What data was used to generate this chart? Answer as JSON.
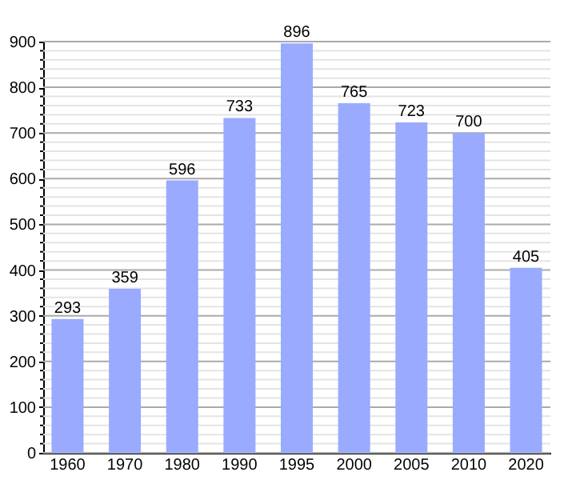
{
  "chart_data": {
    "type": "bar",
    "categories": [
      "1960",
      "1970",
      "1980",
      "1990",
      "1995",
      "2000",
      "2005",
      "2010",
      "2020"
    ],
    "values": [
      293,
      359,
      596,
      733,
      896,
      765,
      723,
      700,
      405
    ],
    "color": "#99aaff",
    "ylim": [
      0,
      900
    ],
    "yticks": [
      0,
      {
        "value": 20,
        "label": null
      },
      {
        "value": 40,
        "label": null
      },
      {
        "value": 60,
        "label": null
      },
      {
        "value": 80,
        "label": null
      },
      100,
      {
        "value": 120,
        "label": null
      },
      {
        "value": 140,
        "label": null
      },
      {
        "value": 160,
        "label": null
      },
      {
        "value": 180,
        "label": null
      },
      200,
      {
        "value": 220,
        "label": null
      },
      {
        "value": 240,
        "label": null
      },
      {
        "value": 260,
        "label": null
      },
      {
        "value": 280,
        "label": null
      },
      300,
      {
        "value": 320,
        "label": null
      },
      {
        "value": 340,
        "label": null
      },
      {
        "value": 360,
        "label": null
      },
      {
        "value": 380,
        "label": null
      },
      400,
      {
        "value": 420,
        "label": null
      },
      {
        "value": 440,
        "label": null
      },
      {
        "value": 460,
        "label": null
      },
      {
        "value": 480,
        "label": null
      },
      500,
      {
        "value": 520,
        "label": null
      },
      {
        "value": 540,
        "label": null
      },
      {
        "value": 560,
        "label": null
      },
      {
        "value": 580,
        "label": null
      },
      600,
      {
        "value": 620,
        "label": null
      },
      {
        "value": 640,
        "label": null
      },
      {
        "value": 660,
        "label": null
      },
      {
        "value": 680,
        "label": null
      },
      700,
      {
        "value": 720,
        "label": null
      },
      {
        "value": 740,
        "label": null
      },
      {
        "value": 760,
        "label": null
      },
      {
        "value": 780,
        "label": null
      },
      800,
      {
        "value": 820,
        "label": null
      },
      {
        "value": 840,
        "label": null
      },
      {
        "value": 860,
        "label": null
      },
      {
        "value": 880,
        "label": null
      },
      900
    ],
    "grid": "y",
    "data_labels": true
  }
}
